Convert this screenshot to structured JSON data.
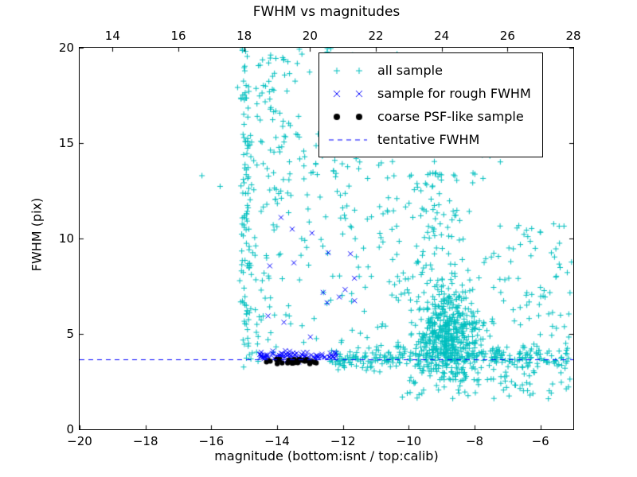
{
  "chart_data": {
    "type": "scatter",
    "title": "FWHM vs magnitudes",
    "xlabel": "magnitude (bottom:isnt / top:calib)",
    "ylabel": "FWHM (pix)",
    "grid": false,
    "x_axis_bottom": {
      "range": [
        -20,
        -5
      ],
      "tick_values": [
        -20,
        -18,
        -16,
        -14,
        -12,
        -10,
        -8,
        -6
      ],
      "tick_labels": [
        "−20",
        "−18",
        "−16",
        "−14",
        "−12",
        "−10",
        "−8",
        "−6"
      ]
    },
    "x_axis_top": {
      "range": [
        13,
        28
      ],
      "tick_values": [
        14,
        16,
        18,
        20,
        22,
        24,
        26,
        28
      ],
      "tick_labels": [
        "14",
        "16",
        "18",
        "20",
        "22",
        "24",
        "26",
        "28"
      ]
    },
    "y_axis": {
      "range": [
        0,
        20
      ],
      "tick_values": [
        0,
        5,
        10,
        15,
        20
      ],
      "tick_labels": [
        "0",
        "5",
        "10",
        "15",
        "20"
      ]
    },
    "tentative_fwhm": 3.65,
    "line_color": "#0000ff",
    "seed": 42,
    "series": {
      "all": {
        "marker": "plus",
        "color": "#00bfbf",
        "size": 3.5
      },
      "rough": {
        "marker": "x",
        "color": "#0000ff",
        "size": 3.0
      },
      "coarse": {
        "marker": "circle",
        "color": "#000000",
        "size": 3.2
      }
    },
    "legend": [
      {
        "marker": "plus",
        "color": "#00bfbf",
        "label": "all sample"
      },
      {
        "marker": "x",
        "color": "#0000ff",
        "label": "sample for rough FWHM"
      },
      {
        "marker": "circle",
        "color": "#000000",
        "label": "coarse PSF-like sample"
      },
      {
        "marker": "dashed-line",
        "color": "#0000ff",
        "label": "tentative FWHM"
      }
    ],
    "clusters": [
      {
        "series": "all",
        "count": 120,
        "x": {
          "dist": "normal",
          "mean": -14.95,
          "sd": 0.1,
          "min": -15.2,
          "max": -14.7
        },
        "y": {
          "dist": "uniform",
          "min": 3.2,
          "max": 20
        }
      },
      {
        "series": "all",
        "count": 90,
        "x": {
          "dist": "uniform",
          "min": -14.7,
          "max": -13.8
        },
        "y": {
          "dist": "uniform",
          "min": 3.5,
          "max": 20
        }
      },
      {
        "series": "all",
        "count": 170,
        "x": {
          "dist": "uniform",
          "min": -13.8,
          "max": -10.3
        },
        "y": {
          "dist": "uniform",
          "min": 4,
          "max": 20
        }
      },
      {
        "series": "all",
        "count": 500,
        "x": {
          "dist": "normal",
          "mean": -8.85,
          "sd": 0.5
        },
        "y": {
          "dist": "normal",
          "mean": 4.9,
          "sd": 1.1,
          "min": 2.6,
          "max": 9.5
        }
      },
      {
        "series": "all",
        "count": 120,
        "x": {
          "dist": "normal",
          "mean": -9.1,
          "sd": 0.7
        },
        "y": {
          "dist": "uniform",
          "min": 7,
          "max": 13.5
        }
      },
      {
        "series": "all",
        "count": 280,
        "x": {
          "dist": "uniform",
          "min": -12.4,
          "max": -5.1
        },
        "y": {
          "dist": "normal",
          "mean": 3.7,
          "sd": 0.3
        }
      },
      {
        "series": "all",
        "count": 70,
        "x": {
          "dist": "uniform",
          "min": -10.2,
          "max": -5.1
        },
        "y": {
          "dist": "uniform",
          "min": 1.6,
          "max": 3.0
        }
      },
      {
        "series": "all",
        "count": 80,
        "x": {
          "dist": "uniform",
          "min": -7.6,
          "max": -5.05
        },
        "y": {
          "dist": "uniform",
          "min": 3.5,
          "max": 11
        }
      },
      {
        "series": "all",
        "count": 90,
        "x": {
          "dist": "uniform",
          "min": -14.2,
          "max": -7.2
        },
        "y": {
          "dist": "uniform",
          "min": 13.5,
          "max": 20
        }
      },
      {
        "series": "all",
        "count": 2,
        "x": {
          "dist": "uniform",
          "min": -16.3,
          "max": -15.6
        },
        "y": {
          "dist": "uniform",
          "min": 12.5,
          "max": 13.6
        }
      },
      {
        "series": "rough",
        "count": 90,
        "x": {
          "dist": "uniform",
          "min": -14.55,
          "max": -12.15
        },
        "y": {
          "dist": "normal",
          "mean": 3.85,
          "sd": 0.12
        }
      },
      {
        "series": "rough",
        "count": 16,
        "x": {
          "dist": "uniform",
          "min": -14.5,
          "max": -11.5
        },
        "y": {
          "dist": "uniform",
          "min": 4.5,
          "max": 11.6
        }
      },
      {
        "series": "coarse",
        "count": 32,
        "x": {
          "dist": "uniform",
          "min": -14.5,
          "max": -12.8
        },
        "y": {
          "dist": "normal",
          "mean": 3.55,
          "sd": 0.07
        }
      }
    ]
  }
}
